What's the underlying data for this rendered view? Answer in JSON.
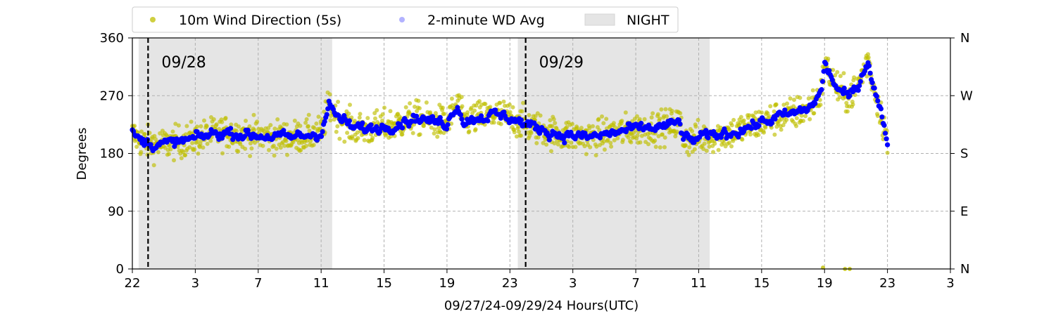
{
  "chart_data": {
    "type": "scatter",
    "title": "",
    "xlabel": "09/27/24-09/29/24  Hours(UTC)",
    "ylabel": "Degrees",
    "ylim": [
      0,
      360
    ],
    "xlim_hours": [
      0,
      52
    ],
    "x_unit": "hours after 22:00 UTC on 09/27/24",
    "x_ticks": [
      {
        "at": 0,
        "label": "22"
      },
      {
        "at": 4,
        "label": "3"
      },
      {
        "at": 8,
        "label": "7"
      },
      {
        "at": 12,
        "label": "11"
      },
      {
        "at": 16,
        "label": "15"
      },
      {
        "at": 20,
        "label": "19"
      },
      {
        "at": 24,
        "label": "23"
      },
      {
        "at": 28,
        "label": "3"
      },
      {
        "at": 32,
        "label": "7"
      },
      {
        "at": 36,
        "label": "11"
      },
      {
        "at": 40,
        "label": "15"
      },
      {
        "at": 44,
        "label": "19"
      },
      {
        "at": 48,
        "label": "23"
      },
      {
        "at": 52,
        "label": "3"
      }
    ],
    "y_ticks": [
      0,
      90,
      180,
      270,
      360
    ],
    "y_ticks_right": [
      {
        "at": 0,
        "label": "N"
      },
      {
        "at": 90,
        "label": "E"
      },
      {
        "at": 180,
        "label": "S"
      },
      {
        "at": 270,
        "label": "W"
      },
      {
        "at": 360,
        "label": "N"
      }
    ],
    "grid": true,
    "legend_position": "top (above plot, left)",
    "legend": [
      {
        "label": "10m Wind Direction (5s)",
        "marker": "dot",
        "color": "#bfbf00"
      },
      {
        "label": "2-minute WD Avg",
        "marker": "dot",
        "color": "#0000ff"
      },
      {
        "label": "NIGHT",
        "marker": "box",
        "color": "#e5e5e5"
      }
    ],
    "night_periods": [
      [
        0.4,
        12.7
      ],
      [
        24.5,
        36.7
      ]
    ],
    "day_markers": [
      {
        "x": 1.0,
        "label": "09/28"
      },
      {
        "x": 25.0,
        "label": "09/29"
      }
    ],
    "series": [
      {
        "name": "10m Wind Direction (5s)",
        "color": "#bfbf00",
        "spread_degrees": 28,
        "x": [
          0,
          0.5,
          1,
          2,
          3,
          4,
          5,
          6,
          7,
          8,
          9,
          10,
          11,
          12,
          12.5,
          13,
          14,
          15,
          16,
          17,
          18,
          19,
          20,
          20.7,
          21,
          22,
          23,
          24,
          25,
          26,
          27,
          28,
          29,
          30,
          31,
          32,
          33,
          34,
          34.8,
          35,
          35.5,
          36,
          37,
          38,
          39,
          40,
          41,
          42,
          43,
          43.8,
          44,
          44.5,
          45,
          45.5,
          46,
          46.8,
          47,
          47.5,
          48
        ],
        "y": [
          210,
          200,
          196,
          194,
          198,
          203,
          210,
          213,
          210,
          208,
          206,
          205,
          208,
          212,
          255,
          238,
          220,
          218,
          222,
          228,
          236,
          230,
          228,
          258,
          230,
          236,
          240,
          236,
          225,
          218,
          210,
          208,
          205,
          209,
          214,
          218,
          220,
          222,
          230,
          205,
          200,
          204,
          208,
          212,
          220,
          228,
          236,
          242,
          250,
          275,
          320,
          295,
          275,
          268,
          280,
          328,
          295,
          250,
          200
        ]
      },
      {
        "name": "2-minute WD Avg",
        "color": "#0000ff",
        "x": [
          0,
          0.5,
          1,
          2,
          3,
          4,
          5,
          6,
          7,
          8,
          9,
          10,
          11,
          12,
          12.5,
          13,
          14,
          15,
          16,
          17,
          18,
          19,
          20,
          20.7,
          21,
          22,
          23,
          24,
          25,
          26,
          27,
          28,
          29,
          30,
          31,
          32,
          33,
          34,
          34.8,
          35,
          35.5,
          36,
          37,
          38,
          39,
          40,
          41,
          42,
          43,
          43.8,
          44,
          44.5,
          45,
          45.5,
          46,
          46.8,
          47,
          47.5,
          48
        ],
        "y": [
          210,
          200,
          196,
          194,
          198,
          203,
          210,
          213,
          210,
          208,
          206,
          205,
          208,
          212,
          255,
          238,
          220,
          218,
          222,
          228,
          236,
          230,
          228,
          258,
          230,
          236,
          240,
          236,
          225,
          218,
          210,
          208,
          205,
          209,
          214,
          218,
          220,
          222,
          230,
          205,
          200,
          204,
          208,
          212,
          220,
          228,
          236,
          242,
          250,
          275,
          320,
          295,
          275,
          268,
          280,
          328,
          295,
          250,
          200
        ]
      }
    ],
    "outliers": [
      {
        "x": 43.9,
        "y": 2
      },
      {
        "x": 45.3,
        "y": 0
      },
      {
        "x": 45.6,
        "y": 0
      }
    ]
  }
}
